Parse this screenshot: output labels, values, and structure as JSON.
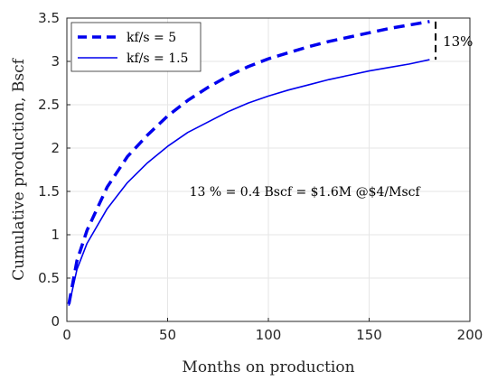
{
  "chart_data": {
    "type": "line",
    "title": "",
    "xlabel": "Months on production",
    "ylabel": "Cumulative production, Bscf",
    "xlim": [
      0,
      200
    ],
    "ylim": [
      0,
      3.5
    ],
    "xticks": [
      0,
      50,
      100,
      150,
      200
    ],
    "yticks": [
      0,
      0.5,
      1,
      1.5,
      2,
      2.5,
      3,
      3.5
    ],
    "grid": true,
    "legend_position": "top-left",
    "series": [
      {
        "name": "k_f/s = 5",
        "legend_label": "kf/s = 5",
        "style": "dashed",
        "color": "#0000ee",
        "x": [
          1,
          5,
          10,
          20,
          30,
          40,
          50,
          60,
          70,
          80,
          90,
          100,
          110,
          120,
          130,
          140,
          150,
          160,
          170,
          180
        ],
        "y": [
          0.2,
          0.7,
          1.05,
          1.55,
          1.9,
          2.15,
          2.37,
          2.55,
          2.7,
          2.83,
          2.94,
          3.03,
          3.1,
          3.17,
          3.23,
          3.28,
          3.33,
          3.38,
          3.42,
          3.46
        ]
      },
      {
        "name": "k_f/s = 1.5",
        "legend_label": "kf/s = 1.5",
        "style": "solid",
        "color": "#0000ee",
        "x": [
          1,
          5,
          10,
          20,
          30,
          40,
          50,
          60,
          70,
          80,
          90,
          100,
          110,
          120,
          130,
          140,
          150,
          160,
          170,
          180
        ],
        "y": [
          0.18,
          0.6,
          0.9,
          1.3,
          1.6,
          1.83,
          2.02,
          2.18,
          2.3,
          2.42,
          2.52,
          2.6,
          2.67,
          2.73,
          2.79,
          2.84,
          2.89,
          2.93,
          2.97,
          3.02
        ]
      }
    ],
    "annotations": {
      "center_text": "13 % = 0.4 Bscf = $1.6M @$4/Mscf",
      "center_x": 118,
      "center_y": 1.5,
      "bracket_label": "13%",
      "bracket_x": 183,
      "bracket_y_top": 3.46,
      "bracket_y_bottom": 3.02
    }
  }
}
